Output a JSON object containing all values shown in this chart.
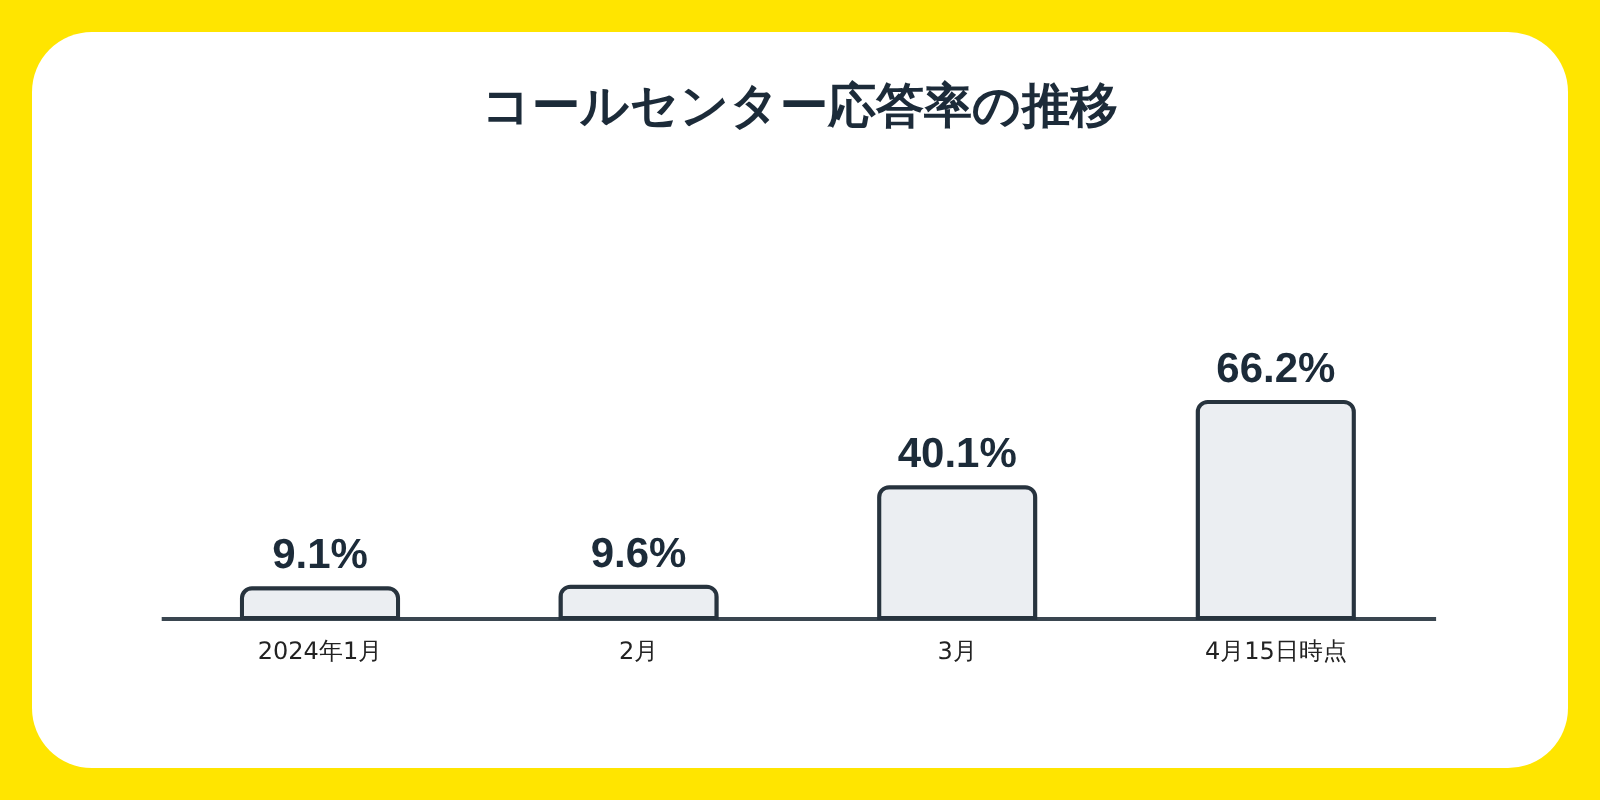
{
  "chart_data": {
    "type": "bar",
    "title": "コールセンター応答率の推移",
    "categories": [
      "2024年1月",
      "2月",
      "3月",
      "4月15日時点"
    ],
    "values": [
      9.1,
      9.6,
      40.1,
      66.2
    ],
    "value_labels": [
      "9.1%",
      "9.6%",
      "40.1%",
      "66.2%"
    ],
    "color": "#ebeef2"
  }
}
